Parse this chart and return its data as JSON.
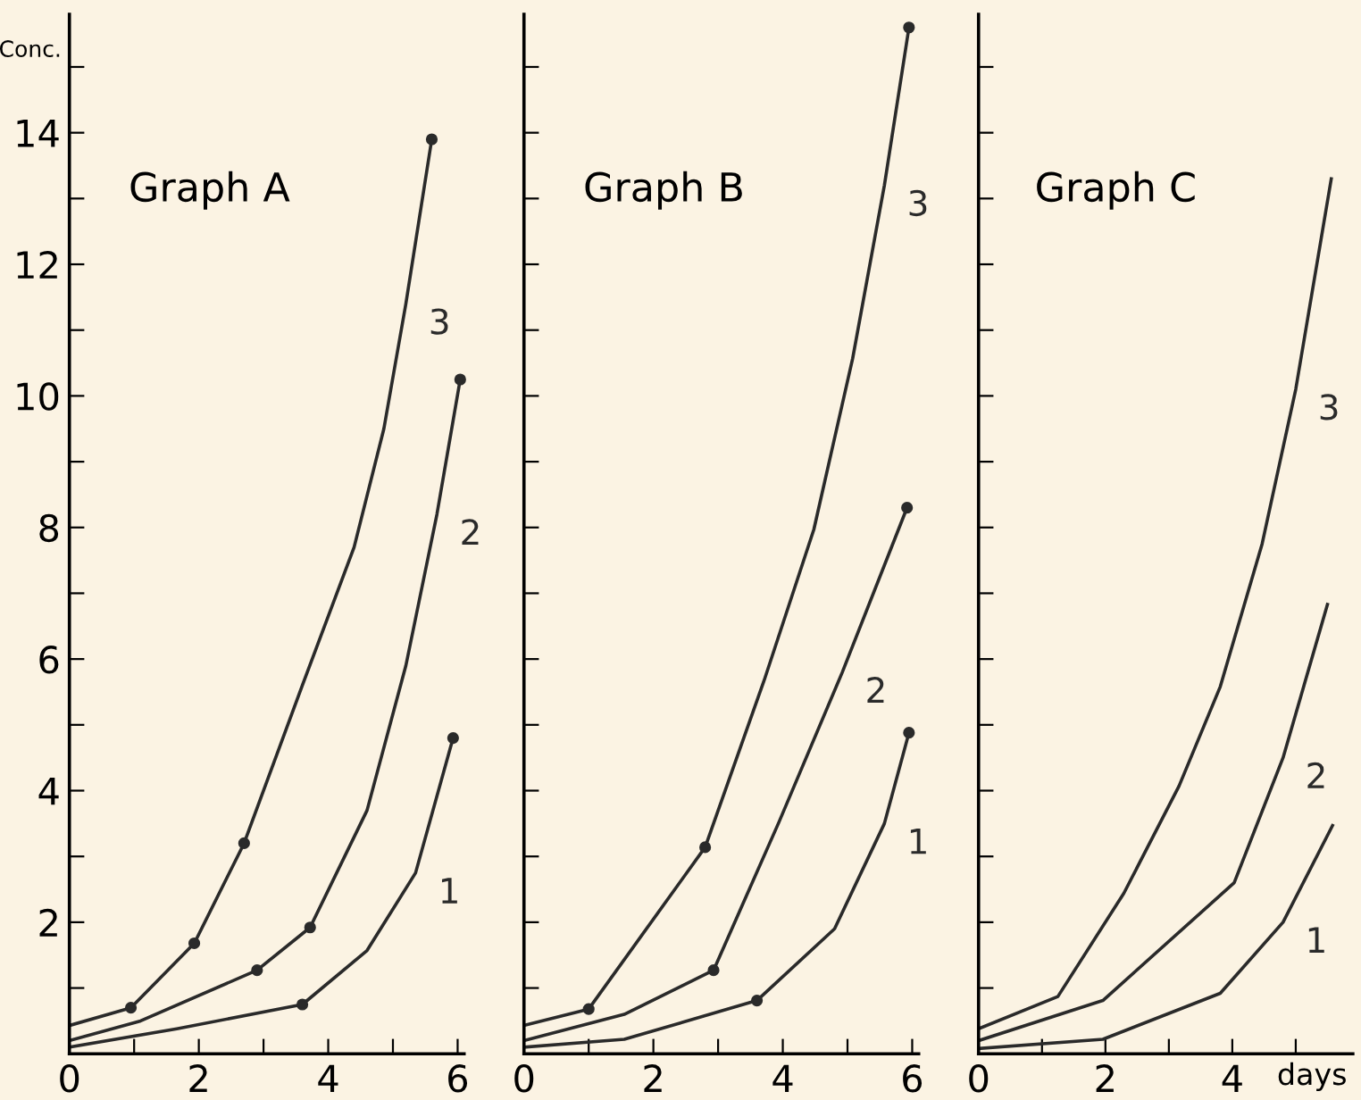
{
  "chart_data": [
    {
      "type": "line",
      "title": "Graph A",
      "ylabel": "Conc.",
      "xlim": [
        0,
        6.1
      ],
      "ylim": [
        0,
        15.8
      ],
      "xticks": [
        0,
        {
          "value": 1,
          "label": null
        },
        2,
        {
          "value": 3,
          "label": null
        },
        4,
        {
          "value": 5,
          "label": null
        },
        6
      ],
      "yticks": [
        {
          "value": 1,
          "label": null
        },
        2,
        {
          "value": 3,
          "label": null
        },
        4,
        {
          "value": 5,
          "label": null
        },
        6,
        {
          "value": 7,
          "label": null
        },
        8,
        {
          "value": 9,
          "label": null
        },
        10,
        {
          "value": 11,
          "label": null
        },
        12,
        {
          "value": 13,
          "label": null
        },
        14,
        {
          "value": 15,
          "label": null
        }
      ],
      "grid": false,
      "legend": false,
      "series": [
        {
          "name": "3",
          "color": "#2a2a2a",
          "x": [
            0,
            0.95,
            1.93,
            2.7,
            3.6,
            4.4,
            4.86,
            5.2,
            5.6
          ],
          "values": [
            0.43,
            0.7,
            1.68,
            3.2,
            5.6,
            7.7,
            9.5,
            11.4,
            13.9
          ]
        },
        {
          "name": "2",
          "color": "#2a2a2a",
          "x": [
            0,
            1.1,
            2.9,
            3.72,
            4.6,
            5.2,
            5.68,
            6.04
          ],
          "values": [
            0.2,
            0.5,
            1.27,
            1.92,
            3.7,
            5.9,
            8.2,
            10.25
          ]
        },
        {
          "name": "1",
          "color": "#2a2a2a",
          "x": [
            0,
            1.66,
            3.6,
            4.6,
            5.35,
            5.93
          ],
          "values": [
            0.1,
            0.38,
            0.75,
            1.57,
            2.75,
            4.8
          ]
        },
        {
          "type": "scatter",
          "marker": "circle",
          "color": "#2a2a2a",
          "x": [
            0.95,
            1.93,
            2.7,
            5.6,
            2.9,
            3.72,
            6.04,
            3.6,
            5.93
          ],
          "values": [
            0.7,
            1.68,
            3.2,
            13.9,
            1.27,
            1.92,
            10.25,
            0.75,
            4.8
          ]
        }
      ]
    },
    {
      "type": "line",
      "title": "Graph B",
      "tick_labels": "x",
      "xlim": [
        0,
        6.1
      ],
      "ylim": [
        0,
        15.8
      ],
      "xticks": [
        0,
        {
          "value": 1,
          "label": null
        },
        2,
        {
          "value": 3,
          "label": null
        },
        4,
        {
          "value": 5,
          "label": null
        },
        6
      ],
      "yticks": [
        {
          "value": 1,
          "label": null
        },
        {
          "value": 2,
          "label": null
        },
        {
          "value": 3,
          "label": null
        },
        {
          "value": 4,
          "label": null
        },
        {
          "value": 5,
          "label": null
        },
        {
          "value": 6,
          "label": null
        },
        {
          "value": 7,
          "label": null
        },
        {
          "value": 8,
          "label": null
        },
        {
          "value": 9,
          "label": null
        },
        {
          "value": 10,
          "label": null
        },
        {
          "value": 11,
          "label": null
        },
        {
          "value": 12,
          "label": null
        },
        {
          "value": 13,
          "label": null
        },
        {
          "value": 14,
          "label": null
        },
        {
          "value": 15,
          "label": null
        }
      ],
      "grid": false,
      "legend": false,
      "series": [
        {
          "name": "3",
          "color": "#2a2a2a",
          "x": [
            0,
            1.0,
            2.8,
            3.72,
            4.48,
            5.08,
            5.57,
            5.95
          ],
          "values": [
            0.43,
            0.68,
            3.14,
            5.7,
            7.97,
            10.57,
            13.2,
            15.6
          ]
        },
        {
          "name": "2",
          "color": "#2a2a2a",
          "x": [
            0,
            1.55,
            2.93,
            3.94,
            4.92,
            5.92
          ],
          "values": [
            0.2,
            0.6,
            1.27,
            3.52,
            5.8,
            8.3
          ]
        },
        {
          "name": "1",
          "color": "#2a2a2a",
          "x": [
            0,
            1.55,
            3.6,
            4.8,
            5.57,
            5.95
          ],
          "values": [
            0.1,
            0.22,
            0.81,
            1.9,
            3.5,
            4.88
          ]
        },
        {
          "type": "scatter",
          "marker": "circle",
          "color": "#2a2a2a",
          "x": [
            1.0,
            2.8,
            5.95,
            2.93,
            5.92,
            3.6,
            5.95
          ],
          "values": [
            0.68,
            3.14,
            15.6,
            1.27,
            8.3,
            0.81,
            4.88
          ]
        }
      ]
    },
    {
      "type": "line",
      "title": "Graph C",
      "xlabel": "days",
      "tick_labels": "x",
      "xlim": [
        0,
        5.9
      ],
      "ylim": [
        0,
        15.8
      ],
      "xticks": [
        0,
        {
          "value": 1,
          "label": null
        },
        2,
        {
          "value": 3,
          "label": null
        },
        4,
        {
          "value": 5,
          "label": null
        }
      ],
      "yticks": [
        {
          "value": 1,
          "label": null
        },
        {
          "value": 2,
          "label": null
        },
        {
          "value": 3,
          "label": null
        },
        {
          "value": 4,
          "label": null
        },
        {
          "value": 5,
          "label": null
        },
        {
          "value": 6,
          "label": null
        },
        {
          "value": 7,
          "label": null
        },
        {
          "value": 8,
          "label": null
        },
        {
          "value": 9,
          "label": null
        },
        {
          "value": 10,
          "label": null
        },
        {
          "value": 11,
          "label": null
        },
        {
          "value": 12,
          "label": null
        },
        {
          "value": 13,
          "label": null
        },
        {
          "value": 14,
          "label": null
        },
        {
          "value": 15,
          "label": null
        }
      ],
      "grid": false,
      "legend": false,
      "series": [
        {
          "name": "3",
          "color": "#2a2a2a",
          "x": [
            0,
            1.25,
            2.29,
            3.16,
            3.81,
            4.47,
            5.0,
            5.56
          ],
          "values": [
            0.38,
            0.87,
            2.44,
            4.07,
            5.58,
            7.75,
            10.1,
            13.3
          ]
        },
        {
          "name": "2",
          "color": "#2a2a2a",
          "x": [
            0,
            1.96,
            4.03,
            4.8,
            5.5
          ],
          "values": [
            0.2,
            0.81,
            2.6,
            4.5,
            6.83
          ]
        },
        {
          "name": "1",
          "color": "#2a2a2a",
          "x": [
            0,
            1.96,
            3.81,
            4.8,
            5.58
          ],
          "values": [
            0.08,
            0.22,
            0.92,
            2.0,
            3.47
          ]
        }
      ]
    }
  ]
}
